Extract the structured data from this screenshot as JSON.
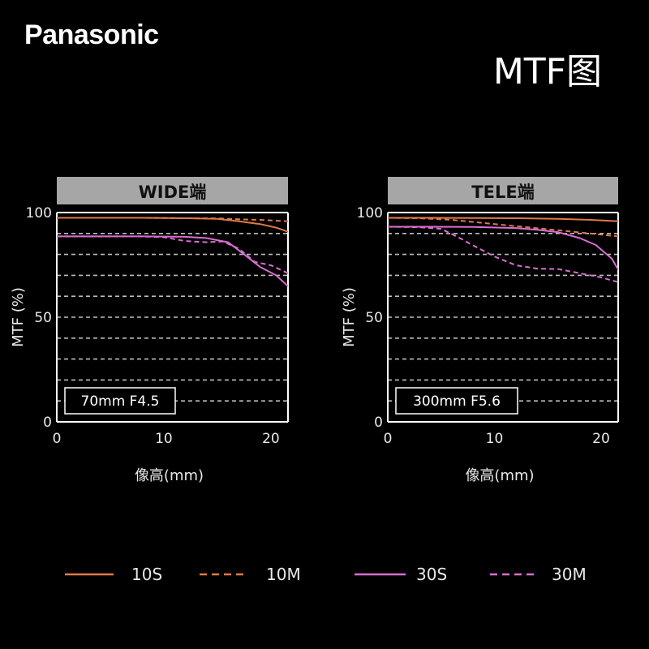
{
  "header": {
    "brand": "Panasonic",
    "title": "MTF图"
  },
  "colors": {
    "background": "#000000",
    "header_bar": "#a6a6a6",
    "grid": "#bdbdbd",
    "orange": "#e0784a",
    "magenta": "#d96fd0"
  },
  "chart_data": [
    {
      "type": "line",
      "title": "WIDE端",
      "annotation": "70mm F4.5",
      "xlabel": "像高(mm)",
      "ylabel": "MTF (%)",
      "xlim": [
        0,
        21.6
      ],
      "ylim": [
        0,
        100
      ],
      "xticks": [
        0,
        10,
        20
      ],
      "yticks": [
        0,
        50,
        100
      ],
      "gridlines_y": [
        10,
        20,
        30,
        40,
        50,
        60,
        70,
        80,
        90
      ],
      "series": [
        {
          "name": "10S",
          "style": "solid",
          "color": "orange",
          "x": [
            0,
            4,
            8,
            12,
            15,
            17,
            19,
            20.5,
            21.6
          ],
          "y": [
            97.5,
            97.5,
            97.5,
            97.3,
            97,
            95.8,
            94.5,
            92.8,
            90.8
          ]
        },
        {
          "name": "10M",
          "style": "dashed",
          "color": "orange",
          "x": [
            0,
            4,
            8,
            12,
            15,
            17,
            19,
            21.6
          ],
          "y": [
            97.5,
            97.5,
            97.5,
            97.3,
            97.2,
            96.8,
            96.5,
            95.8
          ]
        },
        {
          "name": "30S",
          "style": "solid",
          "color": "magenta",
          "x": [
            0,
            4,
            8,
            12,
            14,
            16,
            17.5,
            19,
            20.5,
            21.6
          ],
          "y": [
            88.6,
            88.6,
            88.6,
            88.4,
            87.8,
            85.8,
            80,
            74,
            70,
            64.8
          ]
        },
        {
          "name": "30M",
          "style": "dashed",
          "color": "magenta",
          "x": [
            0,
            4,
            8,
            10,
            12,
            14,
            15.5,
            17,
            18.5,
            20,
            21.6
          ],
          "y": [
            88.6,
            88.6,
            88.6,
            88.2,
            86.4,
            85.8,
            86.2,
            82.8,
            76.4,
            74.8,
            71
          ]
        }
      ]
    },
    {
      "type": "line",
      "title": "TELE端",
      "annotation": "300mm F5.6",
      "xlabel": "像高(mm)",
      "ylabel": "MTF (%)",
      "xlim": [
        0,
        21.6
      ],
      "ylim": [
        0,
        100
      ],
      "xticks": [
        0,
        10,
        20
      ],
      "yticks": [
        0,
        50,
        100
      ],
      "gridlines_y": [
        10,
        20,
        30,
        40,
        50,
        60,
        70,
        80,
        90
      ],
      "series": [
        {
          "name": "10S",
          "style": "solid",
          "color": "orange",
          "x": [
            0,
            4,
            8,
            12,
            16,
            19,
            21.6
          ],
          "y": [
            97.5,
            97.5,
            97.4,
            97.3,
            97,
            96.5,
            95.8
          ]
        },
        {
          "name": "10M",
          "style": "dashed",
          "color": "orange",
          "x": [
            0,
            3,
            6,
            9,
            12,
            15,
            18,
            21.6
          ],
          "y": [
            97.5,
            97.3,
            96.5,
            95,
            93.5,
            92,
            90.5,
            88.6
          ]
        },
        {
          "name": "30S",
          "style": "solid",
          "color": "magenta",
          "x": [
            0,
            4,
            8,
            12,
            14,
            16,
            18,
            19.5,
            21,
            21.6
          ],
          "y": [
            93.2,
            93.2,
            93.1,
            92.6,
            91.8,
            90.6,
            87.8,
            84.5,
            78,
            72.8
          ]
        },
        {
          "name": "30M",
          "style": "dashed",
          "color": "magenta",
          "x": [
            0,
            3,
            5,
            6.5,
            8,
            10,
            12,
            14,
            16,
            18,
            20,
            21.6
          ],
          "y": [
            93.2,
            93,
            92.2,
            88.5,
            84.3,
            79,
            74.8,
            73.2,
            73,
            71,
            69,
            66.8
          ]
        }
      ]
    }
  ],
  "legend": [
    {
      "label": "10S",
      "style": "solid",
      "color": "orange"
    },
    {
      "label": "10M",
      "style": "dashed",
      "color": "orange"
    },
    {
      "label": "30S",
      "style": "solid",
      "color": "magenta"
    },
    {
      "label": "30M",
      "style": "dashed",
      "color": "magenta"
    }
  ]
}
